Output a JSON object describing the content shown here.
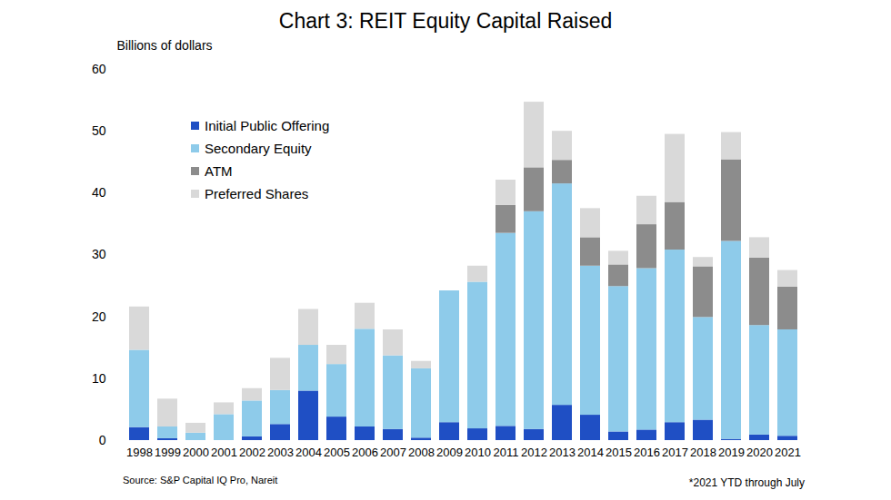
{
  "chart_data": {
    "type": "bar",
    "stacked": true,
    "title": "Chart 3: REIT Equity Capital Raised",
    "y_label": "Billions of dollars",
    "source": "Source: S&P Capital IQ Pro, Nareit",
    "footnote": "*2021 YTD through July",
    "categories": [
      "1998",
      "1999",
      "2000",
      "2001",
      "2002",
      "2003",
      "2004",
      "2005",
      "2006",
      "2007",
      "2008",
      "2009",
      "2010",
      "2011",
      "2012",
      "2013",
      "2014",
      "2015",
      "2016",
      "2017",
      "2018",
      "2019",
      "2020",
      "2021"
    ],
    "series": [
      {
        "name": "Initial Public Offering",
        "color": "#1f4fc4",
        "values": [
          2.1,
          0.3,
          0,
          0,
          0.6,
          2.6,
          8.0,
          3.8,
          2.2,
          1.8,
          0.4,
          2.9,
          1.9,
          2.3,
          1.8,
          5.7,
          4.1,
          1.4,
          1.7,
          2.9,
          3.3,
          0.2,
          0.9,
          0.7
        ]
      },
      {
        "name": "Secondary Equity",
        "color": "#8ecbea",
        "values": [
          12.5,
          1.9,
          1.2,
          4.2,
          5.8,
          5.5,
          7.4,
          8.5,
          15.8,
          11.9,
          11.2,
          21.3,
          23.7,
          31.2,
          35.2,
          35.8,
          24.1,
          23.5,
          26.1,
          27.9,
          16.6,
          32.0,
          17.7,
          17.2
        ]
      },
      {
        "name": "ATM",
        "color": "#8c8c8c",
        "values": [
          0,
          0,
          0,
          0,
          0,
          0,
          0,
          0,
          0,
          0,
          0,
          0,
          0,
          4.5,
          7.1,
          3.8,
          4.6,
          3.5,
          7.1,
          7.7,
          8.2,
          13.2,
          10.9,
          6.9
        ]
      },
      {
        "name": "Preferred Shares",
        "color": "#d9d9d9",
        "values": [
          7.0,
          4.5,
          1.6,
          1.9,
          2.0,
          5.2,
          5.8,
          3.1,
          4.2,
          4.2,
          1.2,
          0,
          2.6,
          4.1,
          10.6,
          4.7,
          4.7,
          2.2,
          4.6,
          11.0,
          1.5,
          4.4,
          3.3,
          2.7
        ]
      }
    ],
    "ylim": [
      0,
      60
    ],
    "yticks": [
      0,
      10,
      20,
      30,
      40,
      50,
      60
    ],
    "grid": false,
    "legend": "top-left"
  }
}
